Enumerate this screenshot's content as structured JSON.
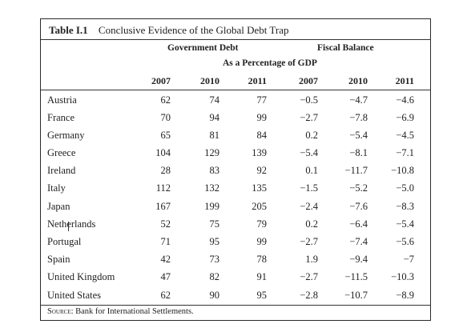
{
  "table": {
    "number": "Table I.1",
    "title": "Conclusive Evidence of the Global Debt Trap",
    "group_government_debt": "Government Debt",
    "group_fiscal_balance": "Fiscal Balance",
    "unit_label": "As a Percentage of GDP",
    "columns": [
      "2007",
      "2010",
      "2011",
      "2007",
      "2010",
      "2011"
    ],
    "rows": [
      {
        "country": "Austria",
        "values": [
          "62",
          "74",
          "77",
          "−0.5",
          "−4.7",
          "−4.6"
        ]
      },
      {
        "country": "France",
        "values": [
          "70",
          "94",
          "99",
          "−2.7",
          "−7.8",
          "−6.9"
        ]
      },
      {
        "country": "Germany",
        "values": [
          "65",
          "81",
          "84",
          "0.2",
          "−5.4",
          "−4.5"
        ]
      },
      {
        "country": "Greece",
        "values": [
          "104",
          "129",
          "139",
          "−5.4",
          "−8.1",
          "−7.1"
        ]
      },
      {
        "country": "Ireland",
        "values": [
          "28",
          "83",
          "92",
          "0.1",
          "−11.7",
          "−10.8"
        ]
      },
      {
        "country": "Italy",
        "values": [
          "112",
          "132",
          "135",
          "−1.5",
          "−5.2",
          "−5.0"
        ]
      },
      {
        "country": "Japan",
        "values": [
          "167",
          "199",
          "205",
          "−2.4",
          "−7.6",
          "−8.3"
        ]
      },
      {
        "country": "Netherlands",
        "values": [
          "52",
          "75",
          "79",
          "0.2",
          "−6.4",
          "−5.4"
        ]
      },
      {
        "country": "Portugal",
        "values": [
          "71",
          "95",
          "99",
          "−2.7",
          "−7.4",
          "−5.6"
        ]
      },
      {
        "country": "Spain",
        "values": [
          "42",
          "73",
          "78",
          "1.9",
          "−9.4",
          "−7"
        ]
      },
      {
        "country": "United Kingdom",
        "values": [
          "47",
          "82",
          "91",
          "−2.7",
          "−11.5",
          "−10.3"
        ]
      },
      {
        "country": "United States",
        "values": [
          "62",
          "90",
          "95",
          "−2.8",
          "−10.7",
          "−8.9"
        ]
      }
    ],
    "source_label": "Source:",
    "source_text": "Bank for International Settlements."
  }
}
